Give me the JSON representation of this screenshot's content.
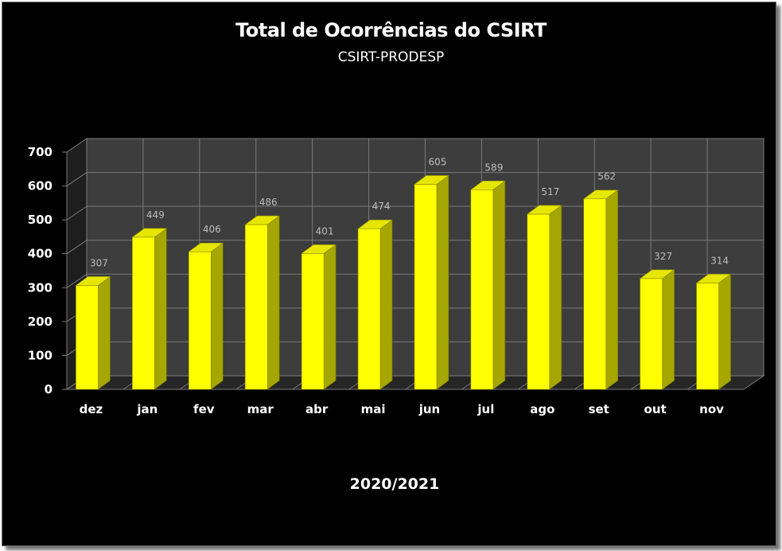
{
  "chart_data": {
    "type": "bar",
    "title": "Total de Ocorrências do CSIRT",
    "subtitle": "CSIRT-PRODESP",
    "xlabel": "2020/2021",
    "ylabel": "",
    "categories": [
      "dez",
      "jan",
      "fev",
      "mar",
      "abr",
      "mai",
      "jun",
      "jul",
      "ago",
      "set",
      "out",
      "nov"
    ],
    "values": [
      307,
      449,
      406,
      486,
      401,
      474,
      605,
      589,
      517,
      562,
      327,
      314
    ],
    "ylim": [
      0,
      700
    ],
    "yticks": [
      0,
      100,
      200,
      300,
      400,
      500,
      600,
      700
    ],
    "grid": true,
    "legend": "none",
    "style": "3d-bar",
    "colors": {
      "background": "#000000",
      "plot_back": "#3d3d3d",
      "grid": "#7a7a7a",
      "bar_front": "#ffff00",
      "bar_side": "#a6a600",
      "bar_top": "#e6e600",
      "data_label": "#bdbdbd"
    }
  }
}
